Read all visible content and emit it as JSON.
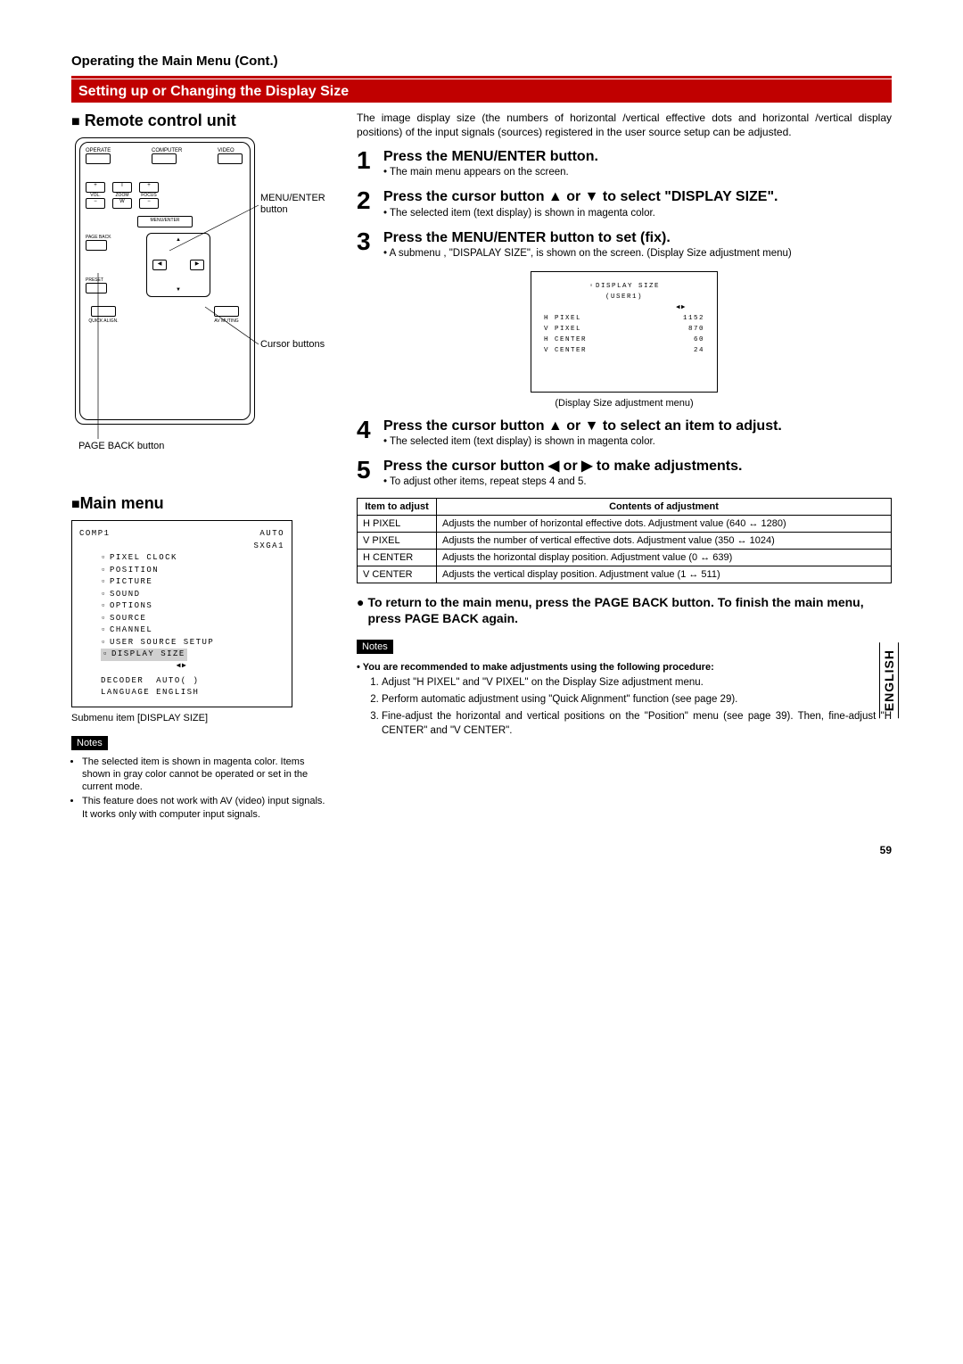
{
  "header": {
    "operating_title": "Operating the Main Menu (Cont.)",
    "red_bar": "Setting up or Changing the Display Size"
  },
  "left": {
    "remote_heading": "Remote control unit",
    "labels": {
      "menu_enter": "MENU/ENTER button",
      "cursor_buttons": "Cursor buttons",
      "page_back": "PAGE BACK button"
    },
    "remote_buttons": {
      "operate": "OPERATE",
      "computer": "COMPUTER",
      "video": "VIDEO",
      "vol": "VOL.",
      "zoom": "ZOOM",
      "focus": "FOCUS",
      "t": "T",
      "w": "W",
      "plus": "+",
      "minus": "−",
      "menu_enter": "MENU/ENTER",
      "page_back": "PAGE BACK",
      "preset": "PRESET",
      "quick_align": "QUICK ALIGN.",
      "av_muting": "AV MUTING"
    },
    "main_menu_heading": "Main menu",
    "menu": {
      "source": "COMP1",
      "auto": "AUTO",
      "res": "SXGA1",
      "items": [
        "PIXEL CLOCK",
        "POSITION",
        "PICTURE",
        "SOUND",
        "OPTIONS",
        "SOURCE",
        "CHANNEL",
        "USER SOURCE SETUP"
      ],
      "display_size": "DISPLAY SIZE",
      "decoder": "DECODER",
      "decoder_val": "AUTO(           )",
      "language": "LANGUAGE",
      "language_val": "ENGLISH",
      "caption": "Submenu item [DISPLAY SIZE]"
    },
    "notes_label": "Notes",
    "notes": [
      "The selected item is shown in magenta color. Items shown in gray color cannot be operated or set in the current mode.",
      "This feature does not work with AV (video) input signals. It works only with computer input signals."
    ]
  },
  "right": {
    "intro": "The image display size (the numbers of horizontal /vertical effective dots and horizontal /vertical display positions) of the input signals (sources) registered in the user source setup can be adjusted.",
    "steps": {
      "s1": {
        "num": "1",
        "title": "Press the MENU/ENTER button.",
        "sub": "The main menu appears on the screen."
      },
      "s2": {
        "num": "2",
        "title": "Press the cursor button ▲ or ▼ to select \"DISPLAY SIZE\".",
        "sub": "The selected item (text display) is shown in magenta color."
      },
      "s3": {
        "num": "3",
        "title": "Press the MENU/ENTER button to set (fix).",
        "sub": "A submenu , \"DISPALAY SIZE\", is shown on the screen. (Display Size adjustment menu)"
      },
      "s4": {
        "num": "4",
        "title": "Press the cursor button ▲ or ▼ to select an item to adjust.",
        "sub": "The selected item (text display) is shown in magenta color."
      },
      "s5": {
        "num": "5",
        "title": "Press the cursor button ◀ or ▶ to make adjustments.",
        "sub": "To adjust other items, repeat steps 4 and 5."
      }
    },
    "submenu": {
      "title": "DISPLAY SIZE",
      "user": "(USER1)",
      "arrows": "◀▶",
      "rows": [
        {
          "label": "H PIXEL",
          "val": "1152"
        },
        {
          "label": "V PIXEL",
          "val": "870"
        },
        {
          "label": "H CENTER",
          "val": "60"
        },
        {
          "label": "V CENTER",
          "val": "24"
        }
      ],
      "caption": "(Display Size adjustment menu)"
    },
    "table": {
      "head1": "Item to adjust",
      "head2": "Contents of adjustment",
      "rows": [
        {
          "item": "H PIXEL",
          "desc": "Adjusts the number of horizontal effective dots. Adjustment value (640 ↔ 1280)"
        },
        {
          "item": "V PIXEL",
          "desc": "Adjusts the number of vertical effective dots. Adjustment value (350 ↔ 1024)"
        },
        {
          "item": "H CENTER",
          "desc": "Adjusts the horizontal display position. Adjustment value (0 ↔ 639)"
        },
        {
          "item": "V CENTER",
          "desc": "Adjusts the vertical display position. Adjustment value (1 ↔ 511)"
        }
      ]
    },
    "return_note": "To return to the main menu, press the PAGE BACK button. To finish the main menu, press PAGE BACK again.",
    "notes_label": "Notes",
    "rec_note": "You are recommended to make adjustments using the following procedure:",
    "procedure": [
      "Adjust \"H PIXEL\" and \"V PIXEL\" on the Display Size adjustment menu.",
      "Perform automatic adjustment using \"Quick Alignment\" function (see page 29).",
      "Fine-adjust the horizontal and vertical positions on the \"Position\" menu (see page 39). Then, fine-adjust \"H CENTER\" and \"V CENTER\"."
    ]
  },
  "side_tab": "ENGLISH",
  "page_num": "59"
}
